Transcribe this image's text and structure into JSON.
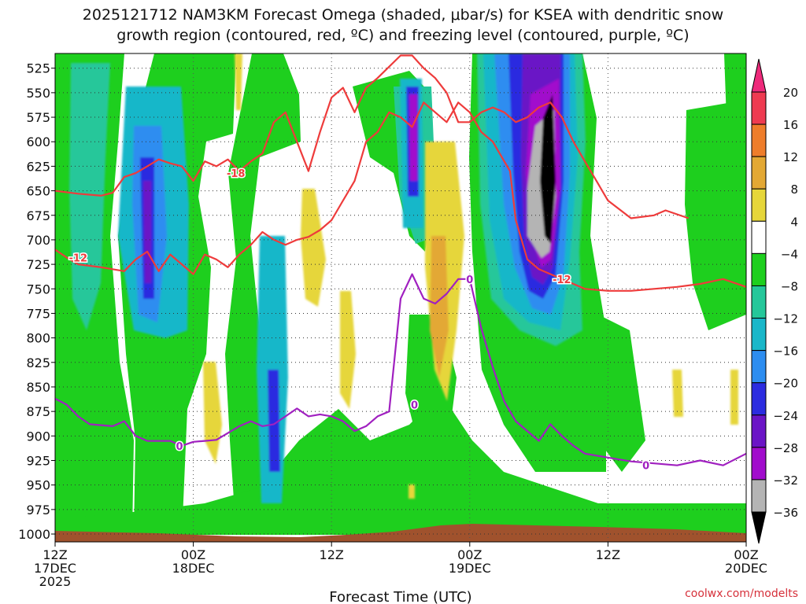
{
  "title_line1": "2025121712 NAM3KM Forecast Omega (shaded, μbar/s) for KSEA with dendritic snow",
  "title_line2": "growth region (contoured, red, ºC) and freezing level (contoured, purple, ºC)",
  "credit": "coolwx.com/modelts",
  "chart_data": {
    "type": "heatmap",
    "title": "2025121712 NAM3KM Forecast Omega (shaded, μbar/s) for KSEA with dendritic snow growth region (contoured, red, ºC) and freezing level (contoured, purple, ºC)",
    "xlabel": "Forecast Time (UTC)",
    "ylabel": "",
    "x_range_hours": [
      0,
      60
    ],
    "y_range_hpa": [
      510,
      1008
    ],
    "grid": true,
    "x_ticks": [
      {
        "hour": 0,
        "lines": [
          "12Z",
          "17DEC",
          "2025"
        ]
      },
      {
        "hour": 12,
        "lines": [
          "00Z",
          "18DEC"
        ]
      },
      {
        "hour": 24,
        "lines": [
          "12Z"
        ]
      },
      {
        "hour": 36,
        "lines": [
          "00Z",
          "19DEC"
        ]
      },
      {
        "hour": 48,
        "lines": [
          "12Z"
        ]
      },
      {
        "hour": 60,
        "lines": [
          "00Z",
          "20DEC"
        ]
      }
    ],
    "y_ticks": [
      525,
      550,
      575,
      600,
      625,
      650,
      675,
      700,
      725,
      750,
      775,
      800,
      825,
      850,
      875,
      900,
      925,
      950,
      975,
      1000
    ],
    "colorbar": {
      "labels": [
        "20",
        "16",
        "12",
        "8",
        "4",
        "−4",
        "−8",
        "−12",
        "−16",
        "−20",
        "−24",
        "−28",
        "−32",
        "−36"
      ],
      "bins": [
        {
          "range": [
            16,
            20
          ],
          "color": "#ee3b51"
        },
        {
          "range": [
            12,
            16
          ],
          "color": "#ee7d2b"
        },
        {
          "range": [
            8,
            12
          ],
          "color": "#e3a834"
        },
        {
          "range": [
            4,
            8
          ],
          "color": "#e6d63a"
        },
        {
          "range": [
            -4,
            4
          ],
          "color": "#ffffff"
        },
        {
          "range": [
            -8,
            -4
          ],
          "color": "#1ecf1e"
        },
        {
          "range": [
            -12,
            -8
          ],
          "color": "#25c79a"
        },
        {
          "range": [
            -16,
            -12
          ],
          "color": "#19b7c9"
        },
        {
          "range": [
            -20,
            -16
          ],
          "color": "#2d8df0"
        },
        {
          "range": [
            -24,
            -20
          ],
          "color": "#2c2ce0"
        },
        {
          "range": [
            -28,
            -24
          ],
          "color": "#6b14c6"
        },
        {
          "range": [
            -32,
            -28
          ],
          "color": "#a10ccc"
        },
        {
          "range": [
            -36,
            -32
          ],
          "color": "#b4b4b4"
        }
      ],
      "top_arrow_color": "#ee2a7b",
      "bottom_arrow_color": "#000000"
    },
    "series": [
      {
        "name": "-18",
        "color": "#ee3b3b",
        "label_at": {
          "hour": 15.7,
          "p": 632
        },
        "points": [
          [
            0,
            650
          ],
          [
            2,
            653
          ],
          [
            4,
            655
          ],
          [
            5,
            652
          ],
          [
            6,
            636
          ],
          [
            7,
            632
          ],
          [
            8,
            625
          ],
          [
            9,
            618
          ],
          [
            10,
            622
          ],
          [
            11,
            625
          ],
          [
            12,
            640
          ],
          [
            13,
            620
          ],
          [
            14,
            625
          ],
          [
            15,
            618
          ],
          [
            16,
            630
          ],
          [
            17,
            620
          ],
          [
            18,
            612
          ],
          [
            19,
            580
          ],
          [
            20,
            570
          ],
          [
            21,
            600
          ],
          [
            22,
            630
          ],
          [
            23,
            590
          ],
          [
            24,
            555
          ],
          [
            25,
            545
          ],
          [
            26,
            570
          ],
          [
            27,
            545
          ],
          [
            28,
            535
          ],
          [
            30,
            512
          ],
          [
            31,
            512
          ],
          [
            32,
            525
          ],
          [
            33,
            535
          ],
          [
            34,
            550
          ],
          [
            35,
            580
          ],
          [
            36,
            580
          ],
          [
            37,
            570
          ],
          [
            38,
            565
          ],
          [
            39,
            570
          ],
          [
            40,
            580
          ],
          [
            41,
            575
          ],
          [
            42,
            565
          ],
          [
            43,
            560
          ],
          [
            44,
            575
          ],
          [
            45,
            600
          ],
          [
            46,
            620
          ],
          [
            47,
            640
          ],
          [
            48,
            660
          ],
          [
            50,
            678
          ],
          [
            52,
            675
          ],
          [
            53,
            670
          ],
          [
            55,
            678
          ]
        ]
      },
      {
        "name": "-12",
        "color": "#ee3b3b",
        "label_at": {
          "hour": 2.0,
          "p": 718
        },
        "points": [
          [
            0,
            710
          ],
          [
            1,
            718
          ],
          [
            2,
            725
          ],
          [
            4,
            728
          ],
          [
            6,
            732
          ],
          [
            7,
            720
          ],
          [
            8,
            712
          ],
          [
            9,
            732
          ],
          [
            10,
            715
          ],
          [
            11,
            725
          ],
          [
            12,
            735
          ],
          [
            13,
            715
          ],
          [
            14,
            720
          ],
          [
            15,
            728
          ],
          [
            16,
            715
          ],
          [
            17,
            705
          ],
          [
            18,
            692
          ],
          [
            19,
            700
          ],
          [
            20,
            705
          ],
          [
            21,
            700
          ],
          [
            22,
            697
          ],
          [
            23,
            690
          ],
          [
            24,
            680
          ],
          [
            25,
            660
          ],
          [
            26,
            640
          ],
          [
            27,
            600
          ],
          [
            28,
            590
          ],
          [
            29,
            570
          ],
          [
            30,
            575
          ],
          [
            31,
            585
          ],
          [
            32,
            560
          ],
          [
            33,
            570
          ],
          [
            34,
            580
          ],
          [
            35,
            560
          ],
          [
            36,
            570
          ],
          [
            37,
            590
          ],
          [
            38,
            600
          ],
          [
            39,
            620
          ],
          [
            39.5,
            630
          ],
          [
            40,
            680
          ],
          [
            41,
            720
          ],
          [
            42,
            730
          ],
          [
            44,
            740
          ],
          [
            46,
            750
          ],
          [
            48,
            752
          ],
          [
            50,
            752
          ],
          [
            52,
            750
          ],
          [
            54,
            748
          ],
          [
            56,
            745
          ],
          [
            58,
            740
          ],
          [
            60,
            748
          ]
        ]
      },
      {
        "name": "0",
        "color": "#a020c0",
        "label_at": {
          "hour": 36.0,
          "p": 740
        },
        "points": [
          [
            0,
            862
          ],
          [
            1,
            868
          ],
          [
            2,
            880
          ],
          [
            3,
            888
          ],
          [
            5,
            890
          ],
          [
            6,
            885
          ],
          [
            7,
            900
          ],
          [
            8,
            905
          ],
          [
            10,
            905
          ],
          [
            11,
            910
          ],
          [
            12,
            906
          ],
          [
            13,
            905
          ],
          [
            14,
            904
          ],
          [
            16,
            890
          ],
          [
            17,
            885
          ],
          [
            18,
            890
          ],
          [
            19,
            888
          ],
          [
            20,
            880
          ],
          [
            21,
            872
          ],
          [
            22,
            880
          ],
          [
            23,
            878
          ],
          [
            24,
            880
          ],
          [
            25,
            885
          ],
          [
            26,
            895
          ],
          [
            27,
            890
          ],
          [
            28,
            880
          ],
          [
            29,
            875
          ],
          [
            30,
            760
          ],
          [
            31,
            735
          ],
          [
            32,
            760
          ],
          [
            33,
            765
          ],
          [
            34,
            755
          ],
          [
            35,
            740
          ],
          [
            36,
            740
          ],
          [
            37,
            790
          ],
          [
            38,
            830
          ],
          [
            39,
            865
          ],
          [
            40,
            885
          ],
          [
            41,
            895
          ],
          [
            42,
            905
          ],
          [
            43,
            888
          ],
          [
            44,
            900
          ],
          [
            45,
            910
          ],
          [
            46,
            918
          ],
          [
            48,
            922
          ],
          [
            50,
            926
          ],
          [
            52,
            928
          ],
          [
            54,
            930
          ],
          [
            56,
            925
          ],
          [
            58,
            930
          ],
          [
            60,
            918
          ]
        ]
      }
    ],
    "extra_contour_labels": [
      {
        "text": "0",
        "hour": 10.8,
        "p": 910,
        "color": "#a020c0"
      },
      {
        "text": "0",
        "hour": 31.2,
        "p": 868,
        "color": "#a020c0"
      },
      {
        "text": "0",
        "hour": 51.3,
        "p": 930,
        "color": "#a020c0"
      },
      {
        "text": "-12",
        "hour": 44.0,
        "p": 740,
        "color": "#ee3b3b"
      }
    ],
    "omega_features": [
      {
        "desc": "strong upward motion core",
        "hour_center": 42,
        "p_top": 510,
        "p_bottom": 740,
        "min_value": -38
      },
      {
        "desc": "moderate upward motion band",
        "hour_center": 8,
        "p_top": 630,
        "p_bottom": 760,
        "min_value": -26
      },
      {
        "desc": "narrow upward motion band",
        "hour_center": 31,
        "p_top": 540,
        "p_bottom": 660,
        "min_value": -28
      },
      {
        "desc": "weak downward motion",
        "hour_center": 33.5,
        "p_top": 620,
        "p_bottom": 820,
        "max_value": 10
      }
    ],
    "terrain_top_hpa": 1000
  }
}
